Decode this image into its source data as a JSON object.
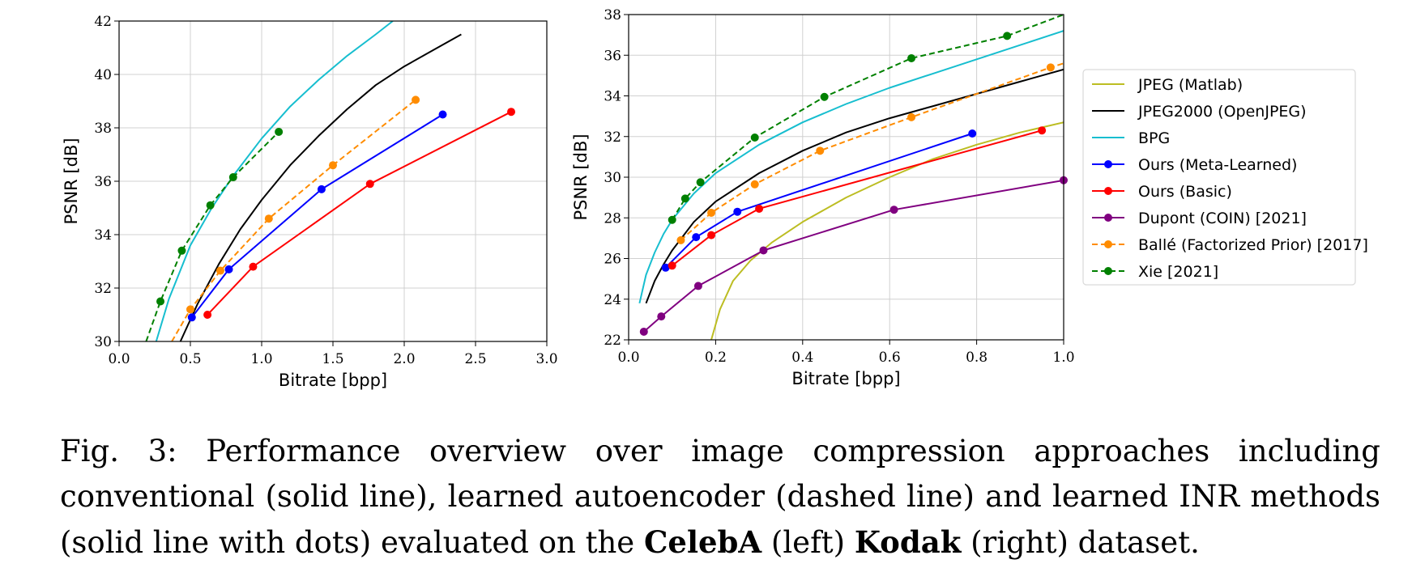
{
  "chart_data": [
    {
      "type": "line",
      "xlabel": "Bitrate [bpp]",
      "ylabel": "PSNR [dB]",
      "xlim": [
        0.0,
        3.0
      ],
      "ylim": [
        30,
        42
      ],
      "xticks": [
        "0.0",
        "0.5",
        "1.0",
        "1.5",
        "2.0",
        "2.5",
        "3.0"
      ],
      "yticks": [
        "30",
        "32",
        "34",
        "36",
        "38",
        "40",
        "42"
      ],
      "grid": true,
      "series": [
        {
          "name": "JPEG2000 (OpenJPEG)",
          "color": "#000000",
          "dash": false,
          "markers": false,
          "x": [
            0.43,
            0.55,
            0.7,
            0.85,
            1.0,
            1.2,
            1.4,
            1.6,
            1.8,
            2.0,
            2.2,
            2.4
          ],
          "y": [
            30.0,
            31.4,
            32.9,
            34.2,
            35.3,
            36.6,
            37.7,
            38.7,
            39.6,
            40.3,
            40.9,
            41.5
          ]
        },
        {
          "name": "BPG",
          "color": "#17becf",
          "dash": false,
          "markers": false,
          "x": [
            0.26,
            0.35,
            0.5,
            0.65,
            0.8,
            1.0,
            1.2,
            1.4,
            1.6,
            1.8,
            1.92
          ],
          "y": [
            30.0,
            31.6,
            33.6,
            35.0,
            36.2,
            37.6,
            38.8,
            39.8,
            40.7,
            41.5,
            42.0
          ]
        },
        {
          "name": "Ours (Meta-Learned)",
          "color": "#0000ff",
          "dash": false,
          "markers": true,
          "x": [
            0.51,
            0.77,
            1.42,
            2.27
          ],
          "y": [
            30.9,
            32.7,
            35.7,
            38.5
          ]
        },
        {
          "name": "Ours (Basic)",
          "color": "#ff0000",
          "dash": false,
          "markers": true,
          "x": [
            0.62,
            0.94,
            1.76,
            2.75
          ],
          "y": [
            31.0,
            32.8,
            35.9,
            38.6
          ]
        },
        {
          "name": "Ballé (Factorized Prior) [2017]",
          "color": "#ff8c00",
          "dash": true,
          "markers": true,
          "x": [
            0.37,
            0.5,
            0.71,
            1.05,
            1.5,
            2.08
          ],
          "y": [
            30.0,
            31.2,
            32.65,
            34.6,
            36.6,
            39.05
          ],
          "marker_from": 1
        },
        {
          "name": "Xie [2021]",
          "color": "#008000",
          "dash": true,
          "markers": true,
          "x": [
            0.19,
            0.29,
            0.44,
            0.64,
            0.8,
            1.12
          ],
          "y": [
            30.0,
            31.5,
            33.4,
            35.1,
            36.15,
            37.85
          ],
          "marker_from": 1
        }
      ]
    },
    {
      "type": "line",
      "xlabel": "Bitrate [bpp]",
      "ylabel": "PSNR [dB]",
      "xlim": [
        0.0,
        1.0
      ],
      "ylim": [
        22,
        38
      ],
      "xticks": [
        "0.0",
        "0.2",
        "0.4",
        "0.6",
        "0.8",
        "1.0"
      ],
      "yticks": [
        "22",
        "24",
        "26",
        "28",
        "30",
        "32",
        "34",
        "36",
        "38"
      ],
      "grid": true,
      "legend_position": "right",
      "series": [
        {
          "name": "JPEG (Matlab)",
          "color": "#bcbd22",
          "dash": false,
          "markers": false,
          "x": [
            0.19,
            0.21,
            0.24,
            0.28,
            0.33,
            0.4,
            0.5,
            0.6,
            0.7,
            0.8,
            0.9,
            1.0
          ],
          "y": [
            22.0,
            23.5,
            24.9,
            25.9,
            26.8,
            27.8,
            29.0,
            30.0,
            30.9,
            31.6,
            32.2,
            32.7
          ]
        },
        {
          "name": "JPEG2000 (OpenJPEG)",
          "color": "#000000",
          "dash": false,
          "markers": false,
          "x": [
            0.04,
            0.06,
            0.08,
            0.1,
            0.15,
            0.2,
            0.3,
            0.4,
            0.5,
            0.6,
            0.7,
            0.8,
            0.9,
            1.0
          ],
          "y": [
            23.8,
            24.9,
            25.7,
            26.4,
            27.8,
            28.8,
            30.2,
            31.3,
            32.2,
            32.9,
            33.5,
            34.1,
            34.7,
            35.3
          ]
        },
        {
          "name": "BPG",
          "color": "#17becf",
          "dash": false,
          "markers": false,
          "x": [
            0.025,
            0.04,
            0.06,
            0.08,
            0.1,
            0.15,
            0.2,
            0.3,
            0.4,
            0.5,
            0.6,
            0.7,
            0.8,
            0.9,
            1.0
          ],
          "y": [
            23.8,
            25.2,
            26.3,
            27.2,
            27.9,
            29.2,
            30.2,
            31.6,
            32.7,
            33.6,
            34.4,
            35.1,
            35.8,
            36.5,
            37.2
          ]
        },
        {
          "name": "Ours (Meta-Learned)",
          "color": "#0000ff",
          "dash": false,
          "markers": true,
          "x": [
            0.085,
            0.155,
            0.25,
            0.79
          ],
          "y": [
            25.55,
            27.05,
            28.3,
            32.15
          ]
        },
        {
          "name": "Ours (Basic)",
          "color": "#ff0000",
          "dash": false,
          "markers": true,
          "x": [
            0.1,
            0.19,
            0.3,
            0.95
          ],
          "y": [
            25.65,
            27.15,
            28.45,
            32.3
          ]
        },
        {
          "name": "Dupont (COIN) [2021]",
          "color": "#800080",
          "dash": false,
          "markers": true,
          "x": [
            0.035,
            0.075,
            0.16,
            0.31,
            0.61,
            1.0
          ],
          "y": [
            22.4,
            23.15,
            24.65,
            26.4,
            28.4,
            29.85
          ]
        },
        {
          "name": "Ballé (Factorized Prior) [2017]",
          "color": "#ff8c00",
          "dash": true,
          "markers": true,
          "x": [
            0.12,
            0.19,
            0.29,
            0.44,
            0.65,
            0.97,
            1.0
          ],
          "y": [
            26.9,
            28.25,
            29.65,
            31.3,
            32.95,
            35.4,
            35.6
          ],
          "marker_to": 5
        },
        {
          "name": "Xie [2021]",
          "color": "#008000",
          "dash": true,
          "markers": true,
          "x": [
            0.1,
            0.13,
            0.165,
            0.29,
            0.45,
            0.65,
            0.87,
            1.0
          ],
          "y": [
            27.9,
            28.95,
            29.75,
            31.95,
            33.95,
            35.85,
            36.95,
            38.0
          ],
          "marker_to": 6
        }
      ]
    }
  ],
  "legend": [
    {
      "label": "JPEG (Matlab)",
      "color": "#bcbd22",
      "dash": false,
      "marker": false
    },
    {
      "label": "JPEG2000 (OpenJPEG)",
      "color": "#000000",
      "dash": false,
      "marker": false
    },
    {
      "label": "BPG",
      "color": "#17becf",
      "dash": false,
      "marker": false
    },
    {
      "label": "Ours (Meta-Learned)",
      "color": "#0000ff",
      "dash": false,
      "marker": true
    },
    {
      "label": "Ours (Basic)",
      "color": "#ff0000",
      "dash": false,
      "marker": true
    },
    {
      "label": "Dupont (COIN) [2021]",
      "color": "#800080",
      "dash": false,
      "marker": true
    },
    {
      "label": "Ballé (Factorized Prior) [2017]",
      "color": "#ff8c00",
      "dash": true,
      "marker": true
    },
    {
      "label": "Xie [2021]",
      "color": "#008000",
      "dash": true,
      "marker": true
    }
  ],
  "caption": {
    "prefix": "Fig. 3: Performance overview over image compression approaches including conventional (solid line), learned autoencoder (dashed line) and learned INR methods (solid line with dots) evaluated on the ",
    "bold1": "CelebA",
    "mid": " (left) ",
    "bold2": "Kodak",
    "suffix": " (right) dataset."
  }
}
